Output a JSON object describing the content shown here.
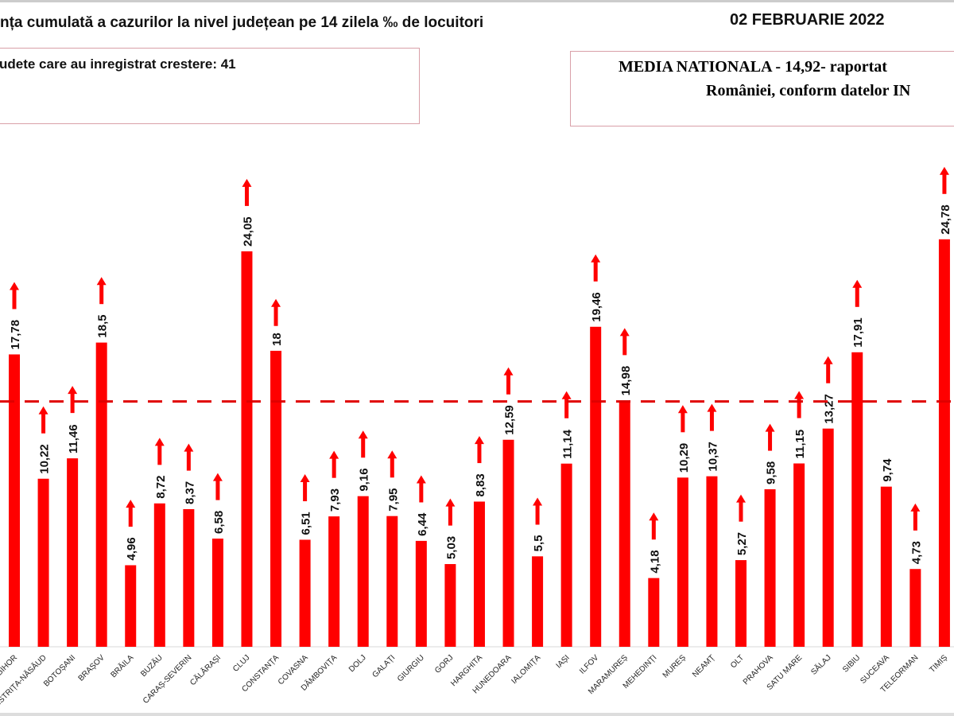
{
  "header": {
    "title": "nța cumulată a cazurilor la nivel județean pe 14 zilela ‰ de locuitori",
    "date": "02 FEBRUARIE 2022",
    "left_box": "udete care au inregistrat crestere: 41",
    "right_box_line1": "MEDIA NATIONALA - 14,92-  raportat",
    "right_box_line2": "României, conform datelor IN"
  },
  "chart_data": {
    "type": "bar",
    "title": "",
    "xlabel": "",
    "ylabel": "",
    "ylim": [
      0,
      24.78
    ],
    "grid": false,
    "bar_color": "#ff0000",
    "reference_line": {
      "value": 14.92,
      "style": "dashed",
      "color": "#e00000"
    },
    "categories": [
      "BIHOR",
      "BISTRIȚA-NĂSĂUD",
      "BOTOȘANI",
      "BRAȘOV",
      "BRĂILA",
      "BUZĂU",
      "CARAȘ-SEVERIN",
      "CĂLĂRAȘI",
      "CLUJ",
      "CONSTANȚA",
      "COVASNA",
      "DÂMBOVIȚA",
      "DOLJ",
      "GALAȚI",
      "GIURGIU",
      "GORJ",
      "HARGHITA",
      "HUNEDOARA",
      "IALOMIȚA",
      "IAȘI",
      "ILFOV",
      "MARAMUREȘ",
      "MEHEDINȚI",
      "MUREȘ",
      "NEAMȚ",
      "OLT",
      "PRAHOVA",
      "SATU MARE",
      "SĂLAJ",
      "SIBIU",
      "SUCEAVA",
      "TELEORMAN",
      "TIMIȘ"
    ],
    "values": [
      17.78,
      10.22,
      11.46,
      18.5,
      4.96,
      8.72,
      8.37,
      6.58,
      24.05,
      18,
      6.51,
      7.93,
      9.16,
      7.95,
      6.44,
      5.03,
      8.83,
      12.59,
      5.5,
      11.14,
      19.46,
      14.98,
      4.18,
      10.29,
      10.37,
      5.27,
      9.58,
      11.15,
      13.27,
      17.91,
      9.74,
      4.73,
      24.78
    ],
    "labels": [
      "17,78",
      "10,22",
      "11,46",
      "18,5",
      "4,96",
      "8,72",
      "8,37",
      "6,58",
      "24,05",
      "18",
      "6,51",
      "7,93",
      "9,16",
      "7,95",
      "6,44",
      "5,03",
      "8,83",
      "12,59",
      "5,5",
      "11,14",
      "19,46",
      "14,98",
      "4,18",
      "10,29",
      "10,37",
      "5,27",
      "9,58",
      "11,15",
      "13,27",
      "17,91",
      "9,74",
      "4,73",
      "24,78"
    ],
    "trend_up": [
      true,
      true,
      true,
      true,
      true,
      true,
      true,
      true,
      true,
      true,
      true,
      true,
      true,
      true,
      true,
      true,
      true,
      true,
      true,
      true,
      true,
      true,
      true,
      true,
      true,
      true,
      true,
      true,
      true,
      true,
      false,
      true,
      true
    ]
  }
}
